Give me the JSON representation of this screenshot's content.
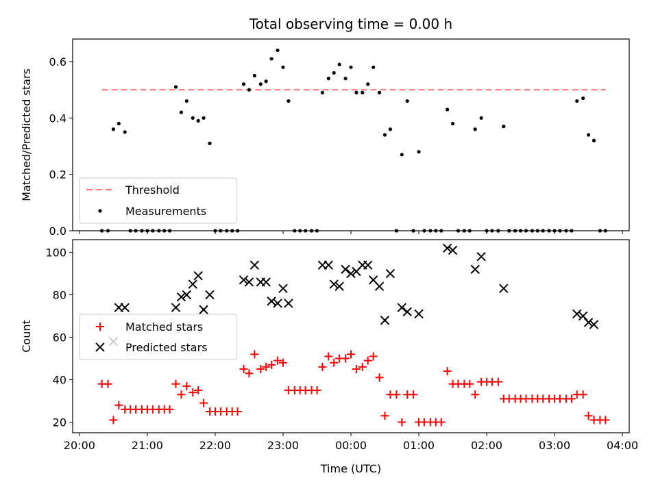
{
  "chart_data": {
    "title": "Total observing time = 0.00 h",
    "xlabel": "Time (UTC)",
    "x_ticks": [
      "20:00",
      "21:00",
      "22:00",
      "23:00",
      "00:00",
      "01:00",
      "02:00",
      "03:00",
      "04:00"
    ],
    "xlim_hours": [
      19.9,
      28.1
    ],
    "panels": [
      {
        "type": "scatter",
        "ylabel": "Matched/Predicted stars",
        "ylim": [
          0,
          0.68
        ],
        "y_ticks": [
          "0.0",
          "0.2",
          "0.4",
          "0.6"
        ],
        "y_tick_values": [
          0,
          0.2,
          0.4,
          0.6
        ],
        "legend_position": "lower-left",
        "threshold": {
          "name": "Threshold",
          "value": 0.5,
          "x_range": [
            20.33,
            27.75
          ],
          "color": "#ff7777"
        },
        "measurements": {
          "name": "Measurements",
          "color": "#000000",
          "points": [
            [
              20.33,
              0
            ],
            [
              20.42,
              0
            ],
            [
              20.5,
              0.36
            ],
            [
              20.58,
              0.38
            ],
            [
              20.67,
              0.35
            ],
            [
              20.75,
              0
            ],
            [
              20.83,
              0
            ],
            [
              20.92,
              0
            ],
            [
              21.0,
              0
            ],
            [
              21.08,
              0
            ],
            [
              21.17,
              0
            ],
            [
              21.25,
              0
            ],
            [
              21.33,
              0
            ],
            [
              21.42,
              0.51
            ],
            [
              21.5,
              0.42
            ],
            [
              21.58,
              0.46
            ],
            [
              21.67,
              0.4
            ],
            [
              21.75,
              0.39
            ],
            [
              21.83,
              0.4
            ],
            [
              21.92,
              0.31
            ],
            [
              22.0,
              0
            ],
            [
              22.08,
              0
            ],
            [
              22.17,
              0
            ],
            [
              22.25,
              0
            ],
            [
              22.33,
              0
            ],
            [
              22.42,
              0.52
            ],
            [
              22.5,
              0.5
            ],
            [
              22.58,
              0.55
            ],
            [
              22.67,
              0.52
            ],
            [
              22.75,
              0.53
            ],
            [
              22.83,
              0.61
            ],
            [
              22.92,
              0.64
            ],
            [
              23.0,
              0.58
            ],
            [
              23.08,
              0.46
            ],
            [
              23.17,
              0
            ],
            [
              23.25,
              0
            ],
            [
              23.33,
              0
            ],
            [
              23.42,
              0
            ],
            [
              23.5,
              0
            ],
            [
              23.58,
              0.49
            ],
            [
              23.67,
              0.54
            ],
            [
              23.75,
              0.56
            ],
            [
              23.83,
              0.59
            ],
            [
              23.92,
              0.54
            ],
            [
              24.0,
              0.58
            ],
            [
              24.08,
              0.49
            ],
            [
              24.17,
              0.49
            ],
            [
              24.25,
              0.52
            ],
            [
              24.33,
              0.58
            ],
            [
              24.42,
              0.49
            ],
            [
              24.5,
              0.34
            ],
            [
              24.58,
              0.36
            ],
            [
              24.67,
              0
            ],
            [
              24.75,
              0.27
            ],
            [
              24.83,
              0.46
            ],
            [
              24.92,
              0
            ],
            [
              25.0,
              0.28
            ],
            [
              25.08,
              0
            ],
            [
              25.17,
              0
            ],
            [
              25.25,
              0
            ],
            [
              25.33,
              0
            ],
            [
              25.42,
              0.43
            ],
            [
              25.5,
              0.38
            ],
            [
              25.58,
              0
            ],
            [
              25.67,
              0
            ],
            [
              25.75,
              0
            ],
            [
              25.83,
              0.36
            ],
            [
              25.92,
              0.4
            ],
            [
              26.0,
              0
            ],
            [
              26.08,
              0
            ],
            [
              26.17,
              0
            ],
            [
              26.25,
              0.37
            ],
            [
              26.33,
              0
            ],
            [
              26.42,
              0
            ],
            [
              26.5,
              0
            ],
            [
              26.58,
              0
            ],
            [
              26.67,
              0
            ],
            [
              26.75,
              0
            ],
            [
              26.83,
              0
            ],
            [
              26.92,
              0
            ],
            [
              27.0,
              0
            ],
            [
              27.08,
              0
            ],
            [
              27.17,
              0
            ],
            [
              27.25,
              0
            ],
            [
              27.33,
              0.46
            ],
            [
              27.42,
              0.47
            ],
            [
              27.5,
              0.34
            ],
            [
              27.58,
              0.32
            ],
            [
              27.67,
              0
            ],
            [
              27.75,
              0
            ]
          ]
        }
      },
      {
        "type": "scatter",
        "ylabel": "Count",
        "ylim": [
          15,
          106
        ],
        "y_ticks": [
          "20",
          "40",
          "60",
          "80",
          "100"
        ],
        "y_tick_values": [
          20,
          40,
          60,
          80,
          100
        ],
        "legend_position": "center-left",
        "series": [
          {
            "name": "Matched stars",
            "marker": "plus",
            "color": "#ff0000",
            "points": [
              [
                20.33,
                38
              ],
              [
                20.42,
                38
              ],
              [
                20.5,
                21
              ],
              [
                20.58,
                28
              ],
              [
                20.67,
                26
              ],
              [
                20.75,
                26
              ],
              [
                20.83,
                26
              ],
              [
                20.92,
                26
              ],
              [
                21.0,
                26
              ],
              [
                21.08,
                26
              ],
              [
                21.17,
                26
              ],
              [
                21.25,
                26
              ],
              [
                21.33,
                26
              ],
              [
                21.42,
                38
              ],
              [
                21.5,
                33
              ],
              [
                21.58,
                37
              ],
              [
                21.67,
                34
              ],
              [
                21.75,
                35
              ],
              [
                21.83,
                29
              ],
              [
                21.92,
                25
              ],
              [
                22.0,
                25
              ],
              [
                22.08,
                25
              ],
              [
                22.17,
                25
              ],
              [
                22.25,
                25
              ],
              [
                22.33,
                25
              ],
              [
                22.42,
                45
              ],
              [
                22.5,
                43
              ],
              [
                22.58,
                52
              ],
              [
                22.67,
                45
              ],
              [
                22.75,
                46
              ],
              [
                22.83,
                47
              ],
              [
                22.92,
                49
              ],
              [
                23.0,
                48
              ],
              [
                23.08,
                35
              ],
              [
                23.17,
                35
              ],
              [
                23.25,
                35
              ],
              [
                23.33,
                35
              ],
              [
                23.42,
                35
              ],
              [
                23.5,
                35
              ],
              [
                23.58,
                46
              ],
              [
                23.67,
                51
              ],
              [
                23.75,
                48
              ],
              [
                23.83,
                50
              ],
              [
                23.92,
                50
              ],
              [
                24.0,
                52
              ],
              [
                24.08,
                45
              ],
              [
                24.17,
                46
              ],
              [
                24.25,
                49
              ],
              [
                24.33,
                51
              ],
              [
                24.42,
                41
              ],
              [
                24.5,
                23
              ],
              [
                24.58,
                33
              ],
              [
                24.67,
                33
              ],
              [
                24.75,
                20
              ],
              [
                24.83,
                33
              ],
              [
                24.92,
                33
              ],
              [
                25.0,
                20
              ],
              [
                25.08,
                20
              ],
              [
                25.17,
                20
              ],
              [
                25.25,
                20
              ],
              [
                25.33,
                20
              ],
              [
                25.42,
                44
              ],
              [
                25.5,
                38
              ],
              [
                25.58,
                38
              ],
              [
                25.67,
                38
              ],
              [
                25.75,
                38
              ],
              [
                25.83,
                33
              ],
              [
                25.92,
                39
              ],
              [
                26.0,
                39
              ],
              [
                26.08,
                39
              ],
              [
                26.17,
                39
              ],
              [
                26.25,
                31
              ],
              [
                26.33,
                31
              ],
              [
                26.42,
                31
              ],
              [
                26.5,
                31
              ],
              [
                26.58,
                31
              ],
              [
                26.67,
                31
              ],
              [
                26.75,
                31
              ],
              [
                26.83,
                31
              ],
              [
                26.92,
                31
              ],
              [
                27.0,
                31
              ],
              [
                27.08,
                31
              ],
              [
                27.17,
                31
              ],
              [
                27.25,
                31
              ],
              [
                27.33,
                33
              ],
              [
                27.42,
                33
              ],
              [
                27.5,
                23
              ],
              [
                27.58,
                21
              ],
              [
                27.67,
                21
              ],
              [
                27.75,
                21
              ]
            ]
          },
          {
            "name": "Predicted stars",
            "marker": "x",
            "color": "#000000",
            "points": [
              [
                20.5,
                58
              ],
              [
                20.58,
                74
              ],
              [
                20.67,
                74
              ],
              [
                21.42,
                74
              ],
              [
                21.5,
                79
              ],
              [
                21.58,
                80
              ],
              [
                21.67,
                85
              ],
              [
                21.75,
                89
              ],
              [
                21.83,
                73
              ],
              [
                21.92,
                80
              ],
              [
                22.42,
                87
              ],
              [
                22.5,
                86
              ],
              [
                22.58,
                94
              ],
              [
                22.67,
                86
              ],
              [
                22.75,
                86
              ],
              [
                22.83,
                77
              ],
              [
                22.92,
                76
              ],
              [
                23.0,
                83
              ],
              [
                23.08,
                76
              ],
              [
                23.58,
                94
              ],
              [
                23.67,
                94
              ],
              [
                23.75,
                85
              ],
              [
                23.83,
                84
              ],
              [
                23.92,
                92
              ],
              [
                24.0,
                90
              ],
              [
                24.08,
                91
              ],
              [
                24.17,
                94
              ],
              [
                24.25,
                94
              ],
              [
                24.33,
                87
              ],
              [
                24.42,
                84
              ],
              [
                24.5,
                68
              ],
              [
                24.58,
                90
              ],
              [
                24.75,
                74
              ],
              [
                24.83,
                72
              ],
              [
                25.0,
                71
              ],
              [
                25.42,
                102
              ],
              [
                25.5,
                101
              ],
              [
                25.83,
                92
              ],
              [
                25.92,
                98
              ],
              [
                26.25,
                83
              ],
              [
                27.33,
                71
              ],
              [
                27.42,
                70
              ],
              [
                27.5,
                67
              ],
              [
                27.58,
                66
              ]
            ]
          }
        ]
      }
    ]
  }
}
